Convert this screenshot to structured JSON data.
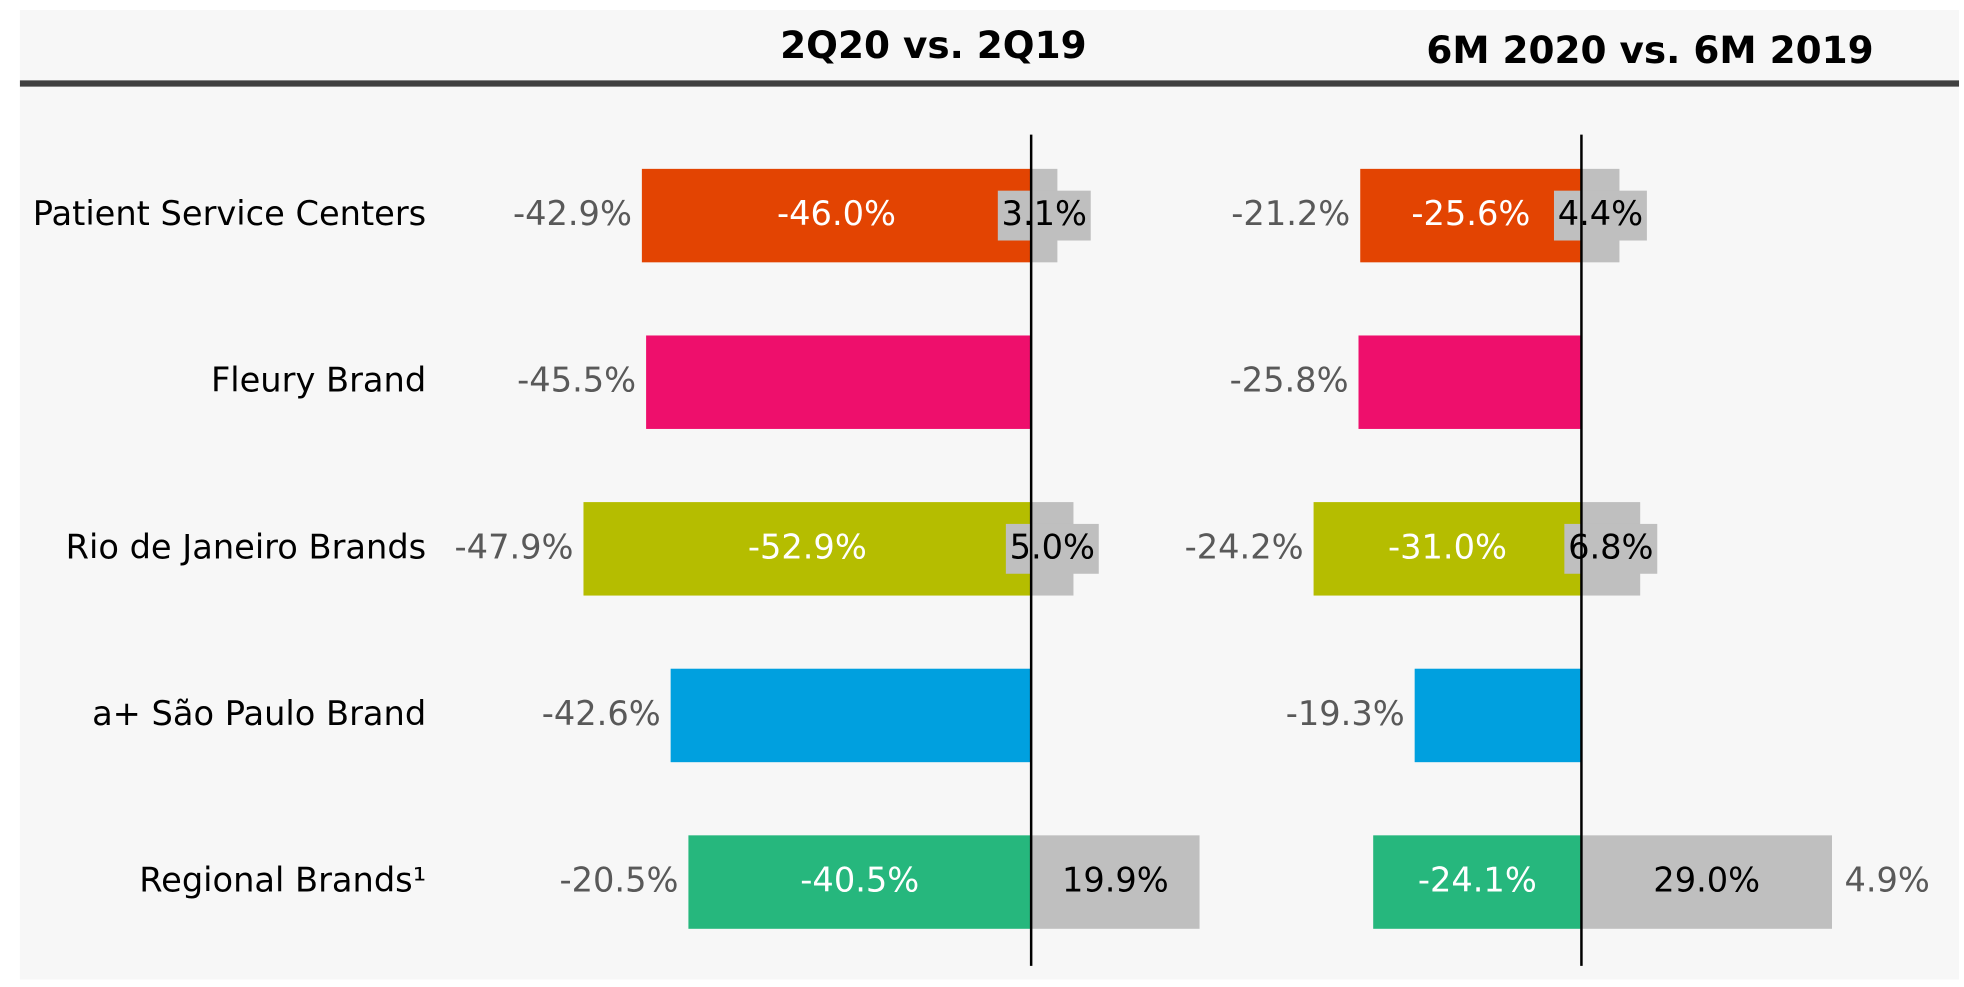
{
  "chart_data": {
    "type": "bar",
    "categories": [
      "Patient Service Centers",
      "Fleury Brand",
      "Rio de Janeiro Brands",
      "a+ São Paulo Brand",
      "Regional Brands¹"
    ],
    "colors": [
      "#e34402",
      "#ee0f6c",
      "#b5bd00",
      "#00a0df",
      "#26b77d"
    ],
    "panels": [
      {
        "title": "2Q20 vs. 2Q19",
        "xlim": [
          -60,
          26
        ],
        "series": [
          {
            "values": [
              -46.0,
              null,
              -52.9,
              null,
              -40.5
            ],
            "value_labels": [
              "-46.0%",
              null,
              "-52.9%",
              null,
              "-40.5%"
            ]
          },
          {
            "color": "#bfbfbf",
            "values": [
              3.1,
              null,
              5.0,
              null,
              19.9
            ],
            "value_labels": [
              "3.1%",
              null,
              "5.0%",
              null,
              "19.9%"
            ]
          }
        ],
        "totals": {
          "values": [
            -42.9,
            -45.5,
            -47.9,
            -42.6,
            -20.5
          ],
          "value_labels": [
            "-42.9%",
            "-45.5%",
            "-47.9%",
            "-42.6%",
            "-20.5%"
          ]
        }
      },
      {
        "title": "6M 2020 vs. 6M 2019",
        "xlim": [
          -30,
          30
        ],
        "series": [
          {
            "values": [
              -25.6,
              null,
              -31.0,
              null,
              -24.1
            ],
            "value_labels": [
              "-25.6%",
              null,
              "-31.0%",
              null,
              "-24.1%"
            ]
          },
          {
            "color": "#bfbfbf",
            "values": [
              4.4,
              null,
              6.8,
              null,
              29.0
            ],
            "value_labels": [
              "4.4%",
              null,
              "6.8%",
              null,
              "29.0%"
            ]
          }
        ],
        "totals": {
          "values": [
            -21.2,
            -25.8,
            -24.2,
            -19.3,
            4.9
          ],
          "value_labels": [
            "-21.2%",
            "-25.8%",
            "-24.2%",
            "-19.3%",
            "4.9%"
          ]
        }
      }
    ]
  }
}
